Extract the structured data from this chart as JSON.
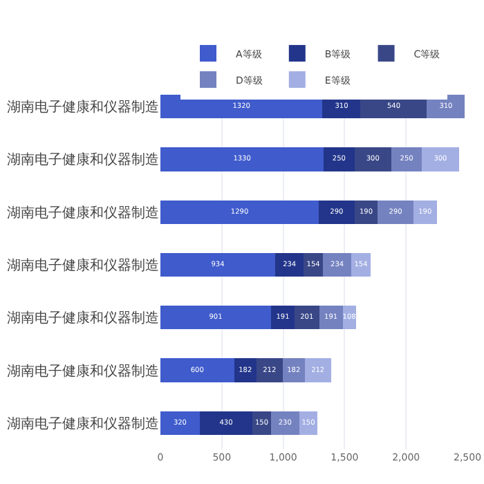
{
  "chart_data": {
    "type": "bar",
    "orientation": "horizontal",
    "stacked": true,
    "categories": [
      "湖南电子健康和仪器制造",
      "湖南电子健康和仪器制造",
      "湖南电子健康和仪器制造",
      "湖南电子健康和仪器制造",
      "湖南电子健康和仪器制造",
      "湖南电子健康和仪器制造",
      "湖南电子健康和仪器制造"
    ],
    "series": [
      {
        "name": "A等级",
        "color": "#3f5bcc",
        "values": [
          1320,
          1330,
          1290,
          934,
          901,
          600,
          320
        ]
      },
      {
        "name": "B等级",
        "color": "#22358a",
        "values": [
          310,
          250,
          290,
          234,
          191,
          182,
          430
        ]
      },
      {
        "name": "C等级",
        "color": "#394787",
        "values": [
          540,
          300,
          190,
          154,
          201,
          212,
          150
        ]
      },
      {
        "name": "D等级",
        "color": "#7482c0",
        "values": [
          310,
          250,
          290,
          234,
          191,
          182,
          230
        ]
      },
      {
        "name": "E等级",
        "color": "#a3afe3",
        "values": [
          null,
          300,
          190,
          154,
          108,
          212,
          150
        ]
      }
    ],
    "xlim": [
      0,
      2500
    ],
    "xticks": [
      0,
      500,
      {
        "value": 1000,
        "label": "1,000"
      },
      {
        "value": 1500,
        "label": "1,500"
      },
      {
        "value": 2000,
        "label": "2,000"
      },
      {
        "value": 2500,
        "label": "2,500"
      }
    ],
    "grid": "x",
    "legend": "top",
    "data_labels": true
  }
}
